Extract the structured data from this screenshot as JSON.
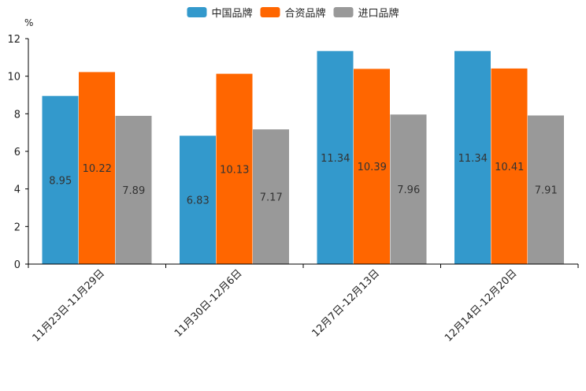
{
  "chart_data": {
    "type": "bar",
    "title": "",
    "unit_label": "%",
    "xlabel": "",
    "ylabel": "",
    "ylim": [
      0,
      12
    ],
    "yticks": [
      0,
      2,
      4,
      6,
      8,
      10,
      12
    ],
    "grid": false,
    "legend_position": "top-center",
    "categories": [
      "11月23日-11月29日",
      "11月30日-12月6日",
      "12月7日-12月13日",
      "12月14日-12月20日"
    ],
    "series": [
      {
        "name": "中国品牌",
        "color": "#3399cc",
        "values": [
          8.95,
          6.83,
          11.34,
          11.34
        ],
        "labels": [
          "8.95",
          "6.83",
          "11.34",
          "11.34"
        ]
      },
      {
        "name": "合资品牌",
        "color": "#ff6600",
        "values": [
          10.22,
          10.13,
          10.39,
          10.41
        ],
        "labels": [
          "10.22",
          "10.13",
          "10.39",
          "10.41"
        ]
      },
      {
        "name": "进口品牌",
        "color": "#999999",
        "values": [
          7.89,
          7.17,
          7.96,
          7.91
        ],
        "labels": [
          "7.89",
          "7.17",
          "7.96",
          "7.91"
        ]
      }
    ]
  }
}
